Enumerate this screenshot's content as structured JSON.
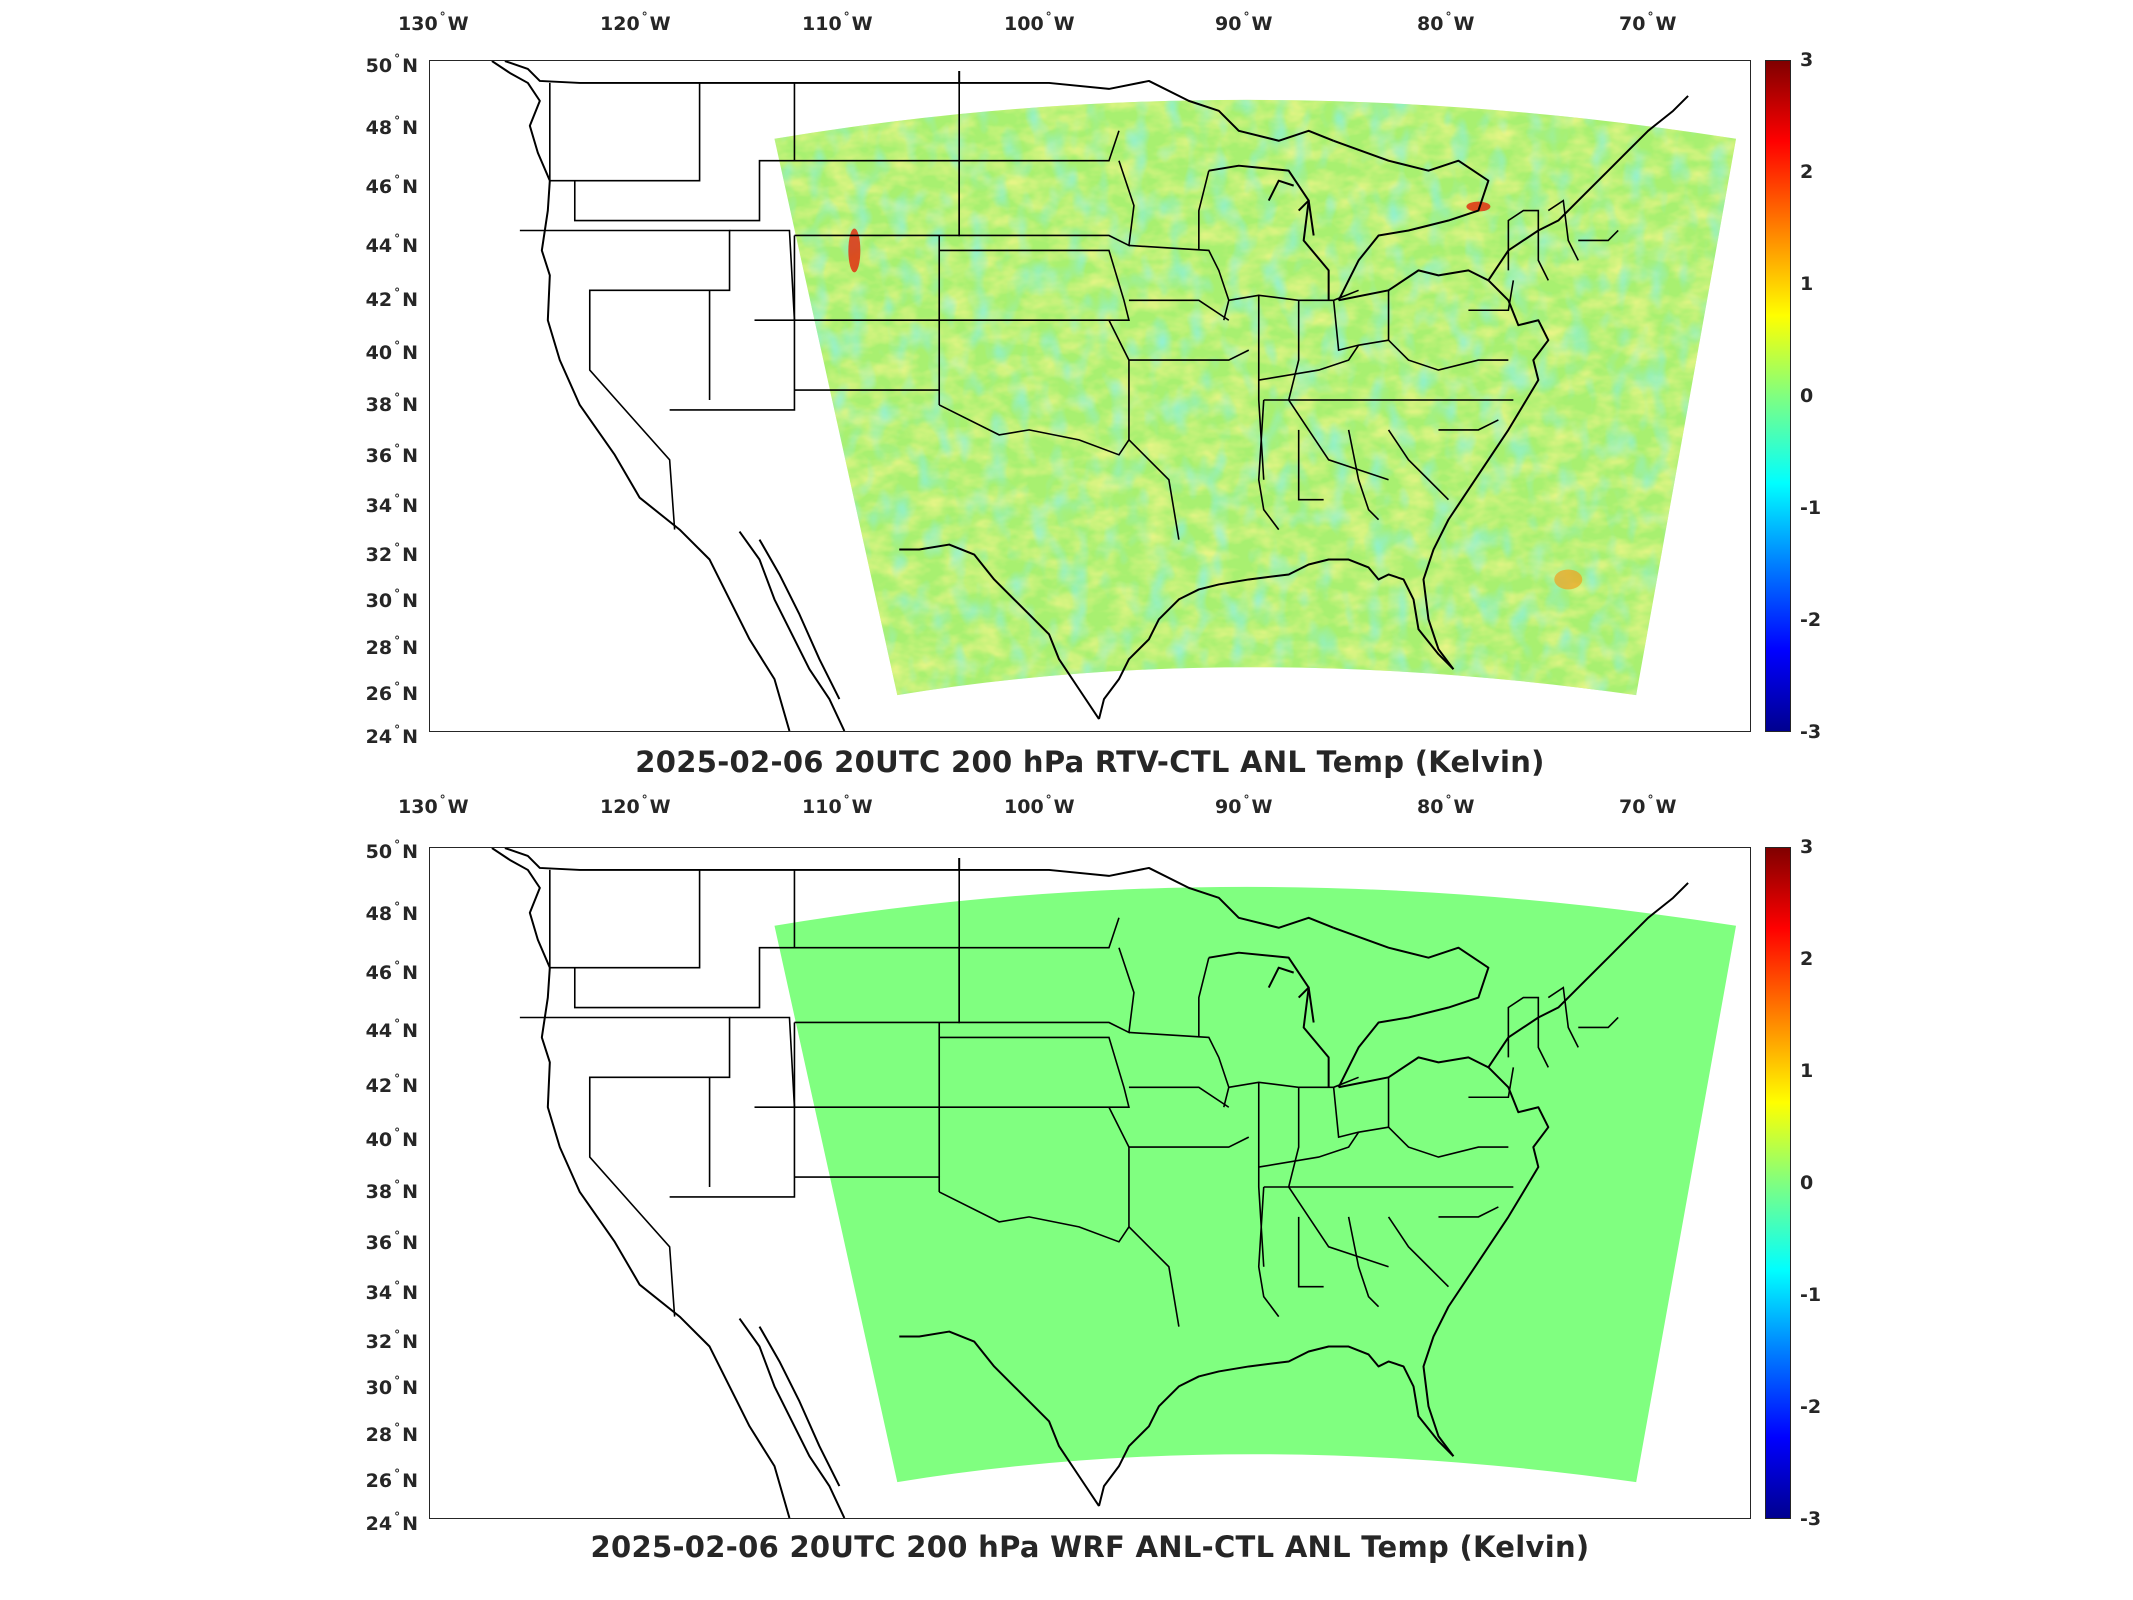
{
  "panels": [
    {
      "title": "2025-02-06 20UTC 200 hPa RTV-CTL ANL Temp (Kelvin)",
      "longitude_ticks": [
        {
          "deg": "130",
          "hemi": "W"
        },
        {
          "deg": "120",
          "hemi": "W"
        },
        {
          "deg": "110",
          "hemi": "W"
        },
        {
          "deg": "100",
          "hemi": "W"
        },
        {
          "deg": "90",
          "hemi": "W"
        },
        {
          "deg": "80",
          "hemi": "W"
        },
        {
          "deg": "70",
          "hemi": "W"
        }
      ],
      "latitude_ticks": [
        {
          "deg": "50",
          "hemi": "N"
        },
        {
          "deg": "48",
          "hemi": "N"
        },
        {
          "deg": "46",
          "hemi": "N"
        },
        {
          "deg": "44",
          "hemi": "N"
        },
        {
          "deg": "42",
          "hemi": "N"
        },
        {
          "deg": "40",
          "hemi": "N"
        },
        {
          "deg": "38",
          "hemi": "N"
        },
        {
          "deg": "36",
          "hemi": "N"
        },
        {
          "deg": "34",
          "hemi": "N"
        },
        {
          "deg": "32",
          "hemi": "N"
        },
        {
          "deg": "30",
          "hemi": "N"
        },
        {
          "deg": "28",
          "hemi": "N"
        },
        {
          "deg": "26",
          "hemi": "N"
        },
        {
          "deg": "24",
          "hemi": "N"
        }
      ],
      "field_description": "mostly near-zero differences (greens/yellows), local extremes up to about 2 K",
      "colorbar": {
        "ticks": [
          "3",
          "2",
          "1",
          "0",
          "-1",
          "-2",
          "-3"
        ],
        "range": [
          -3,
          3
        ],
        "colormap": "jet"
      }
    },
    {
      "title": "2025-02-06 20UTC 200 hPa WRF ANL-CTL ANL Temp (Kelvin)",
      "longitude_ticks": [
        {
          "deg": "130",
          "hemi": "W"
        },
        {
          "deg": "120",
          "hemi": "W"
        },
        {
          "deg": "110",
          "hemi": "W"
        },
        {
          "deg": "100",
          "hemi": "W"
        },
        {
          "deg": "90",
          "hemi": "W"
        },
        {
          "deg": "80",
          "hemi": "W"
        },
        {
          "deg": "70",
          "hemi": "W"
        }
      ],
      "latitude_ticks": [
        {
          "deg": "50",
          "hemi": "N"
        },
        {
          "deg": "48",
          "hemi": "N"
        },
        {
          "deg": "46",
          "hemi": "N"
        },
        {
          "deg": "44",
          "hemi": "N"
        },
        {
          "deg": "42",
          "hemi": "N"
        },
        {
          "deg": "40",
          "hemi": "N"
        },
        {
          "deg": "38",
          "hemi": "N"
        },
        {
          "deg": "36",
          "hemi": "N"
        },
        {
          "deg": "34",
          "hemi": "N"
        },
        {
          "deg": "32",
          "hemi": "N"
        },
        {
          "deg": "30",
          "hemi": "N"
        },
        {
          "deg": "28",
          "hemi": "N"
        },
        {
          "deg": "26",
          "hemi": "N"
        },
        {
          "deg": "24",
          "hemi": "N"
        }
      ],
      "field_description": "uniform zero difference across domain",
      "colorbar": {
        "ticks": [
          "3",
          "2",
          "1",
          "0",
          "-1",
          "-2",
          "-3"
        ],
        "range": [
          -3,
          3
        ],
        "colormap": "jet"
      }
    }
  ],
  "colors": {
    "zero": "#80ff80",
    "positive_small": "#d8f040",
    "negative_small": "#40e0c8",
    "hotspot": "#e03010",
    "outline": "#000000"
  }
}
